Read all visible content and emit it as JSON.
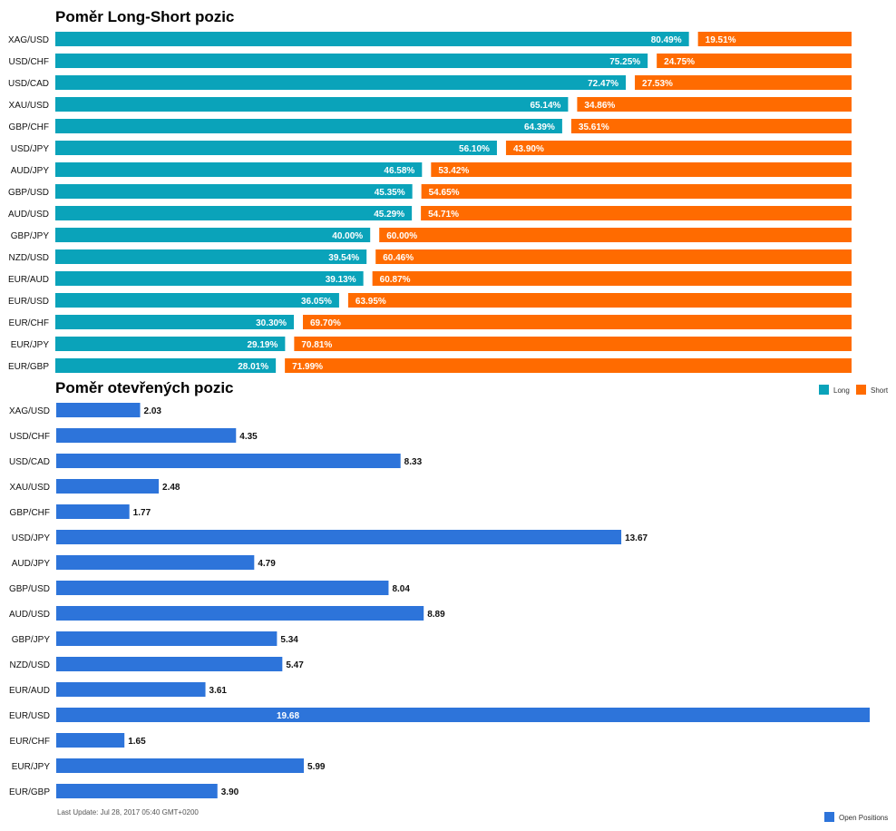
{
  "colors": {
    "long": "#0aa3ba",
    "short": "#ff6b00",
    "open": "#2d74da"
  },
  "chart_data": [
    {
      "type": "bar",
      "stacked": true,
      "orientation": "horizontal",
      "title": "Poměr Long-Short pozic",
      "categories": [
        "XAG/USD",
        "USD/CHF",
        "USD/CAD",
        "XAU/USD",
        "GBP/CHF",
        "USD/JPY",
        "AUD/JPY",
        "GBP/USD",
        "AUD/USD",
        "GBP/JPY",
        "NZD/USD",
        "EUR/AUD",
        "EUR/USD",
        "EUR/CHF",
        "EUR/JPY",
        "EUR/GBP"
      ],
      "series": [
        {
          "name": "Long",
          "values": [
            80.49,
            75.25,
            72.47,
            65.14,
            64.39,
            56.1,
            46.58,
            45.35,
            45.29,
            40.0,
            39.54,
            39.13,
            36.05,
            30.3,
            29.19,
            28.01
          ],
          "labels": [
            "80.49%",
            "75.25%",
            "72.47%",
            "65.14%",
            "64.39%",
            "56.10%",
            "46.58%",
            "45.35%",
            "45.29%",
            "40.00%",
            "39.54%",
            "39.13%",
            "36.05%",
            "30.30%",
            "29.19%",
            "28.01%"
          ]
        },
        {
          "name": "Short",
          "values": [
            19.51,
            24.75,
            27.53,
            34.86,
            35.61,
            43.9,
            53.42,
            54.65,
            54.71,
            60.0,
            60.46,
            60.87,
            63.95,
            69.7,
            70.81,
            71.99
          ],
          "labels": [
            "19.51%",
            "24.75%",
            "27.53%",
            "34.86%",
            "35.61%",
            "43.90%",
            "53.42%",
            "54.65%",
            "54.71%",
            "60.00%",
            "60.46%",
            "60.87%",
            "63.95%",
            "69.70%",
            "70.81%",
            "71.99%"
          ]
        }
      ],
      "xlim": [
        0,
        100
      ],
      "legend": "right"
    },
    {
      "type": "bar",
      "orientation": "horizontal",
      "title": "Poměr otevřených pozic",
      "categories": [
        "XAG/USD",
        "USD/CHF",
        "USD/CAD",
        "XAU/USD",
        "GBP/CHF",
        "USD/JPY",
        "AUD/JPY",
        "GBP/USD",
        "AUD/USD",
        "GBP/JPY",
        "NZD/USD",
        "EUR/AUD",
        "EUR/USD",
        "EUR/CHF",
        "EUR/JPY",
        "EUR/GBP"
      ],
      "series": [
        {
          "name": "Open Positions",
          "values": [
            2.03,
            4.35,
            8.33,
            2.48,
            1.77,
            13.67,
            4.79,
            8.04,
            8.89,
            5.34,
            5.47,
            3.61,
            19.68,
            1.65,
            5.99,
            3.9
          ],
          "labels": [
            "2.03",
            "4.35",
            "8.33",
            "2.48",
            "1.77",
            "13.67",
            "4.79",
            "8.04",
            "8.89",
            "5.34",
            "5.47",
            "3.61",
            "19.68",
            "1.65",
            "5.99",
            "3.90"
          ]
        }
      ],
      "xlim": [
        0,
        19.68
      ],
      "legend": "bottom-right"
    }
  ],
  "footer": {
    "last_update": "Last Update: Jul 28, 2017 05:40 GMT+0200"
  }
}
